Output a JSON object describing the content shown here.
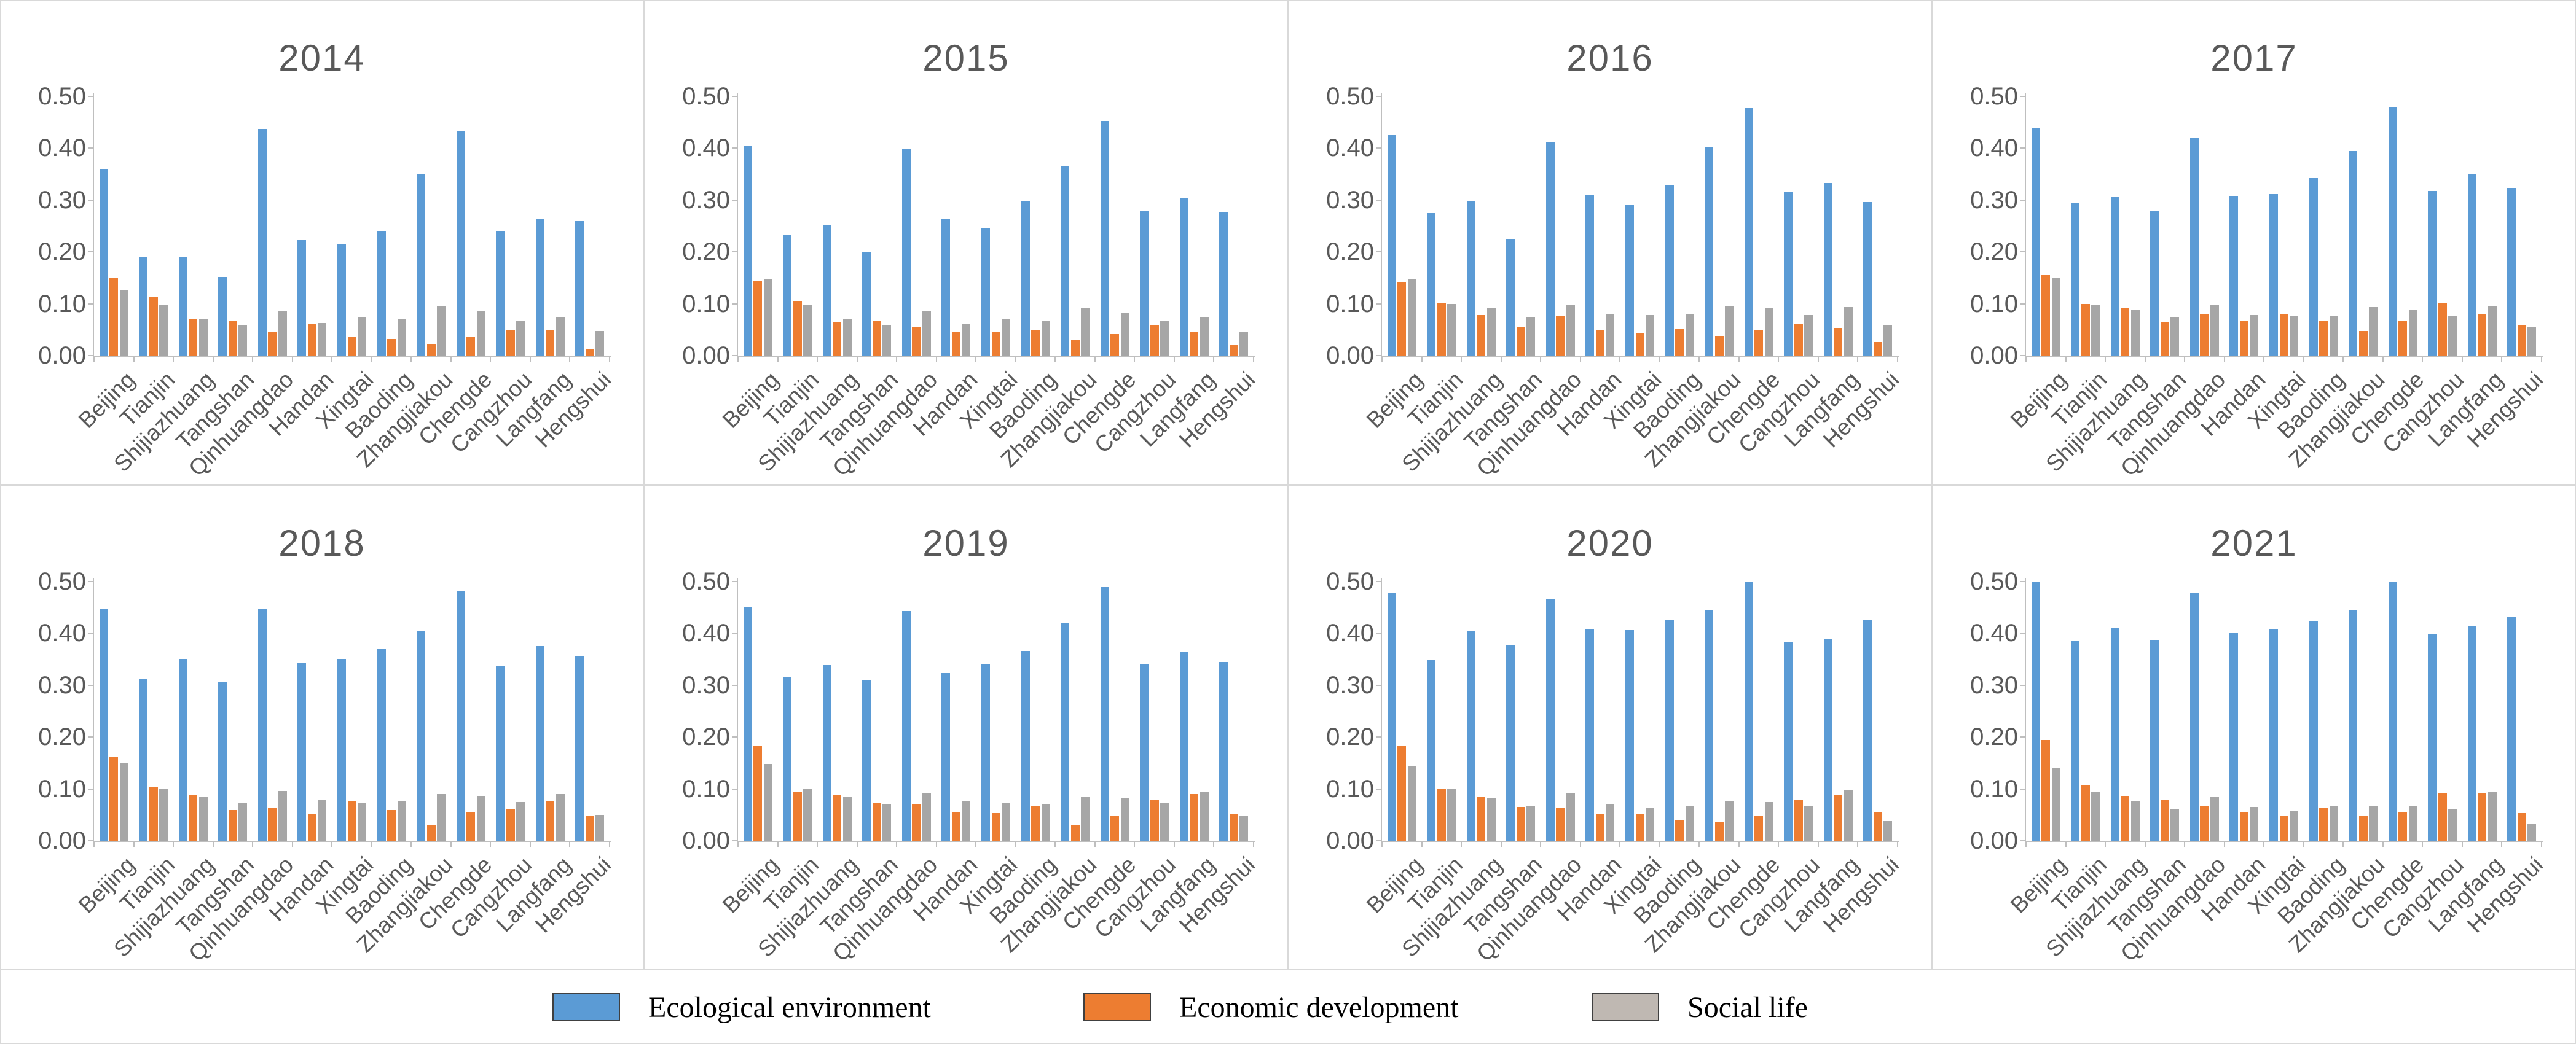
{
  "figure": {
    "y_axis_ticks": [
      "0.00",
      "0.10",
      "0.20",
      "0.30",
      "0.40",
      "0.50"
    ],
    "colors": {
      "ecological": "#5B9BD5",
      "economic": "#ED7D31",
      "social": "#A6A6A6",
      "title_text": "#595959",
      "axis_line": "#BFBFBF",
      "panel_border": "#D9D9D9"
    },
    "legend": [
      {
        "label": "Ecological environment",
        "color": "#5B9BD5"
      },
      {
        "label": "Economic development",
        "color": "#ED7D31"
      },
      {
        "label": "Social life",
        "color": "#BFB8B2"
      }
    ]
  },
  "chart_data": [
    {
      "type": "bar",
      "title": "2014",
      "categories": [
        "Beijing",
        "Tianjin",
        "Shijiazhuang",
        "Tangshan",
        "Qinhuangdao",
        "Handan",
        "Xingtai",
        "Baoding",
        "Zhangjiakou",
        "Chengde",
        "Cangzhou",
        "Langfang",
        "Hengshui"
      ],
      "series": [
        {
          "name": "Ecological environment",
          "values": [
            0.36,
            0.19,
            0.19,
            0.152,
            0.437,
            0.224,
            0.216,
            0.24,
            0.35,
            0.432,
            0.24,
            0.264,
            0.26
          ]
        },
        {
          "name": "Economic development",
          "values": [
            0.15,
            0.113,
            0.07,
            0.068,
            0.045,
            0.062,
            0.035,
            0.032,
            0.022,
            0.035,
            0.048,
            0.05,
            0.012
          ]
        },
        {
          "name": "Social life",
          "values": [
            0.126,
            0.098,
            0.07,
            0.058,
            0.086,
            0.063,
            0.073,
            0.071,
            0.096,
            0.086,
            0.068,
            0.075,
            0.047
          ]
        }
      ],
      "ylim": [
        0,
        0.5
      ],
      "grid": false,
      "legend_position": "bottom-shared"
    },
    {
      "type": "bar",
      "title": "2015",
      "categories": [
        "Beijing",
        "Tianjin",
        "Shijiazhuang",
        "Tangshan",
        "Qinhuangdao",
        "Handan",
        "Xingtai",
        "Baoding",
        "Zhangjiakou",
        "Chengde",
        "Cangzhou",
        "Langfang",
        "Hengshui"
      ],
      "series": [
        {
          "name": "Ecological environment",
          "values": [
            0.405,
            0.233,
            0.251,
            0.2,
            0.399,
            0.263,
            0.245,
            0.297,
            0.365,
            0.453,
            0.279,
            0.303,
            0.277
          ]
        },
        {
          "name": "Economic development",
          "values": [
            0.143,
            0.106,
            0.065,
            0.067,
            0.055,
            0.046,
            0.046,
            0.05,
            0.03,
            0.042,
            0.058,
            0.045,
            0.021
          ]
        },
        {
          "name": "Social life",
          "values": [
            0.147,
            0.098,
            0.071,
            0.058,
            0.087,
            0.062,
            0.071,
            0.068,
            0.092,
            0.082,
            0.066,
            0.075,
            0.045
          ]
        }
      ],
      "ylim": [
        0,
        0.5
      ],
      "grid": false,
      "legend_position": "bottom-shared"
    },
    {
      "type": "bar",
      "title": "2016",
      "categories": [
        "Beijing",
        "Tianjin",
        "Shijiazhuang",
        "Tangshan",
        "Qinhuangdao",
        "Handan",
        "Xingtai",
        "Baoding",
        "Zhangjiakou",
        "Chengde",
        "Cangzhou",
        "Langfang",
        "Hengshui"
      ],
      "series": [
        {
          "name": "Ecological environment",
          "values": [
            0.425,
            0.275,
            0.297,
            0.225,
            0.412,
            0.31,
            0.29,
            0.328,
            0.402,
            0.478,
            0.315,
            0.333,
            0.296
          ]
        },
        {
          "name": "Economic development",
          "values": [
            0.142,
            0.101,
            0.078,
            0.055,
            0.077,
            0.05,
            0.043,
            0.052,
            0.038,
            0.048,
            0.061,
            0.053,
            0.026
          ]
        },
        {
          "name": "Social life",
          "values": [
            0.147,
            0.099,
            0.092,
            0.074,
            0.097,
            0.08,
            0.078,
            0.08,
            0.096,
            0.092,
            0.078,
            0.094,
            0.058
          ]
        }
      ],
      "ylim": [
        0,
        0.5
      ],
      "grid": false,
      "legend_position": "bottom-shared"
    },
    {
      "type": "bar",
      "title": "2017",
      "categories": [
        "Beijing",
        "Tianjin",
        "Shijiazhuang",
        "Tangshan",
        "Qinhuangdao",
        "Handan",
        "Xingtai",
        "Baoding",
        "Zhangjiakou",
        "Chengde",
        "Cangzhou",
        "Langfang",
        "Hengshui"
      ],
      "series": [
        {
          "name": "Ecological environment",
          "values": [
            0.44,
            0.294,
            0.307,
            0.278,
            0.42,
            0.308,
            0.312,
            0.343,
            0.395,
            0.48,
            0.317,
            0.35,
            0.324
          ]
        },
        {
          "name": "Economic development",
          "values": [
            0.155,
            0.099,
            0.092,
            0.065,
            0.079,
            0.068,
            0.081,
            0.067,
            0.047,
            0.068,
            0.101,
            0.08,
            0.059
          ]
        },
        {
          "name": "Social life",
          "values": [
            0.149,
            0.098,
            0.088,
            0.073,
            0.097,
            0.078,
            0.077,
            0.077,
            0.094,
            0.089,
            0.076,
            0.095,
            0.054
          ]
        }
      ],
      "ylim": [
        0,
        0.5
      ],
      "grid": false,
      "legend_position": "bottom-shared"
    },
    {
      "type": "bar",
      "title": "2018",
      "categories": [
        "Beijing",
        "Tianjin",
        "Shijiazhuang",
        "Tangshan",
        "Qinhuangdao",
        "Handan",
        "Xingtai",
        "Baoding",
        "Zhangjiakou",
        "Chengde",
        "Cangzhou",
        "Langfang",
        "Hengshui"
      ],
      "series": [
        {
          "name": "Ecological environment",
          "values": [
            0.448,
            0.313,
            0.351,
            0.307,
            0.447,
            0.342,
            0.351,
            0.371,
            0.404,
            0.482,
            0.337,
            0.376,
            0.355
          ]
        },
        {
          "name": "Economic development",
          "values": [
            0.161,
            0.104,
            0.089,
            0.059,
            0.064,
            0.052,
            0.076,
            0.059,
            0.03,
            0.056,
            0.06,
            0.076,
            0.047
          ]
        },
        {
          "name": "Social life",
          "values": [
            0.149,
            0.101,
            0.085,
            0.073,
            0.096,
            0.078,
            0.074,
            0.077,
            0.09,
            0.087,
            0.075,
            0.09,
            0.05
          ]
        }
      ],
      "ylim": [
        0,
        0.5
      ],
      "grid": false,
      "legend_position": "bottom-shared"
    },
    {
      "type": "bar",
      "title": "2019",
      "categories": [
        "Beijing",
        "Tianjin",
        "Shijiazhuang",
        "Tangshan",
        "Qinhuangdao",
        "Handan",
        "Xingtai",
        "Baoding",
        "Zhangjiakou",
        "Chengde",
        "Cangzhou",
        "Langfang",
        "Hengshui"
      ],
      "series": [
        {
          "name": "Ecological environment",
          "values": [
            0.451,
            0.316,
            0.339,
            0.31,
            0.443,
            0.324,
            0.341,
            0.366,
            0.419,
            0.489,
            0.34,
            0.364,
            0.345
          ]
        },
        {
          "name": "Economic development",
          "values": [
            0.183,
            0.095,
            0.088,
            0.072,
            0.07,
            0.055,
            0.053,
            0.068,
            0.031,
            0.049,
            0.079,
            0.09,
            0.051
          ]
        },
        {
          "name": "Social life",
          "values": [
            0.148,
            0.099,
            0.084,
            0.071,
            0.093,
            0.077,
            0.072,
            0.07,
            0.084,
            0.082,
            0.072,
            0.095,
            0.048
          ]
        }
      ],
      "ylim": [
        0,
        0.5
      ],
      "grid": false,
      "legend_position": "bottom-shared"
    },
    {
      "type": "bar",
      "title": "2020",
      "categories": [
        "Beijing",
        "Tianjin",
        "Shijiazhuang",
        "Tangshan",
        "Qinhuangdao",
        "Handan",
        "Xingtai",
        "Baoding",
        "Zhangjiakou",
        "Chengde",
        "Cangzhou",
        "Langfang",
        "Hengshui"
      ],
      "series": [
        {
          "name": "Ecological environment",
          "values": [
            0.479,
            0.349,
            0.405,
            0.377,
            0.467,
            0.409,
            0.406,
            0.425,
            0.445,
            0.5,
            0.384,
            0.39,
            0.427
          ]
        },
        {
          "name": "Economic development",
          "values": [
            0.183,
            0.101,
            0.085,
            0.065,
            0.063,
            0.052,
            0.052,
            0.039,
            0.035,
            0.049,
            0.078,
            0.089,
            0.054
          ]
        },
        {
          "name": "Social life",
          "values": [
            0.145,
            0.099,
            0.083,
            0.066,
            0.091,
            0.071,
            0.064,
            0.067,
            0.077,
            0.075,
            0.066,
            0.097,
            0.038
          ]
        }
      ],
      "ylim": [
        0,
        0.5
      ],
      "grid": false,
      "legend_position": "bottom-shared"
    },
    {
      "type": "bar",
      "title": "2021",
      "categories": [
        "Beijing",
        "Tianjin",
        "Shijiazhuang",
        "Tangshan",
        "Qinhuangdao",
        "Handan",
        "Xingtai",
        "Baoding",
        "Zhangjiakou",
        "Chengde",
        "Cangzhou",
        "Langfang",
        "Hengshui"
      ],
      "series": [
        {
          "name": "Ecological environment",
          "values": [
            0.5,
            0.385,
            0.411,
            0.387,
            0.477,
            0.402,
            0.408,
            0.424,
            0.446,
            0.5,
            0.398,
            0.414,
            0.432
          ]
        },
        {
          "name": "Economic development",
          "values": [
            0.194,
            0.107,
            0.086,
            0.078,
            0.068,
            0.055,
            0.048,
            0.063,
            0.047,
            0.056,
            0.091,
            0.091,
            0.053
          ]
        },
        {
          "name": "Social life",
          "values": [
            0.14,
            0.095,
            0.077,
            0.061,
            0.085,
            0.065,
            0.058,
            0.068,
            0.068,
            0.068,
            0.061,
            0.094,
            0.032
          ]
        }
      ],
      "ylim": [
        0,
        0.5
      ],
      "grid": false,
      "legend_position": "bottom-shared"
    }
  ]
}
